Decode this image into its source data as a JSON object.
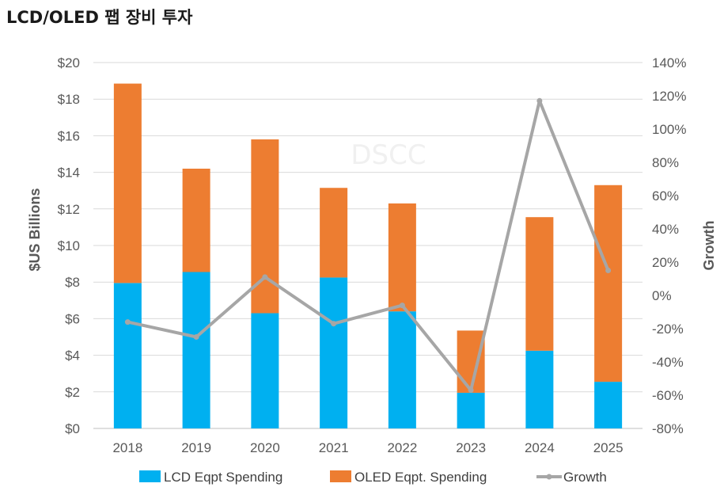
{
  "page": {
    "title": "LCD/OLED 팹 장비 투자"
  },
  "chart_data": {
    "type": "bar",
    "stacked": true,
    "categories": [
      "2018",
      "2019",
      "2020",
      "2021",
      "2022",
      "2023",
      "2024",
      "2025"
    ],
    "series": [
      {
        "name": "LCD Eqpt Spending",
        "kind": "bar",
        "axis": "left",
        "color": "#00b0f0",
        "values": [
          7.95,
          8.55,
          6.3,
          8.25,
          6.4,
          1.95,
          4.25,
          2.55
        ]
      },
      {
        "name": "OLED Eqpt. Spending",
        "kind": "bar",
        "axis": "left",
        "color": "#ed7d31",
        "values": [
          10.9,
          5.65,
          9.5,
          4.9,
          5.9,
          3.4,
          7.3,
          10.75
        ]
      },
      {
        "name": "Growth",
        "kind": "line",
        "axis": "right",
        "color": "#a6a6a6",
        "values": [
          -16,
          -25,
          11,
          -17,
          -6,
          -57,
          117,
          15
        ]
      }
    ],
    "ylabel": "$US Billions",
    "y2label": "Growth",
    "ylim": [
      0,
      20
    ],
    "y2lim": [
      -80,
      140
    ],
    "yticks": [
      "$0",
      "$2",
      "$4",
      "$6",
      "$8",
      "$10",
      "$12",
      "$14",
      "$16",
      "$18",
      "$20"
    ],
    "y2ticks": [
      "-80%",
      "-60%",
      "-40%",
      "-20%",
      "0%",
      "20%",
      "40%",
      "60%",
      "80%",
      "100%",
      "120%",
      "140%"
    ],
    "grid": true,
    "legend": "bottom",
    "watermark": "DSCC"
  }
}
